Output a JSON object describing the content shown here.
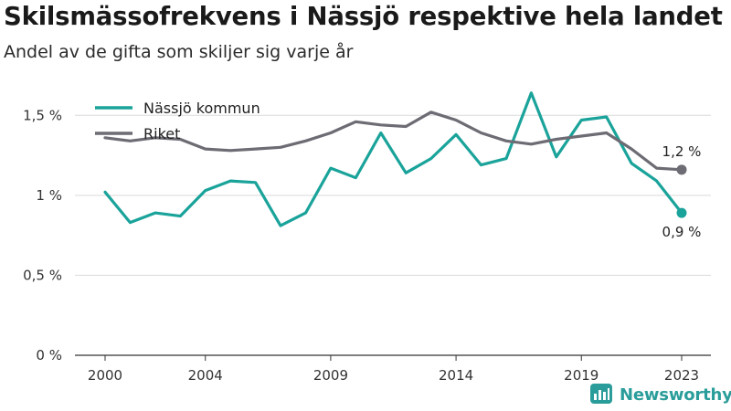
{
  "header": {
    "title": "Skilsmässofrekvens i Nässjö respektive hela landet",
    "subtitle": "Andel av de gifta som skiljer sig varje år"
  },
  "brand": {
    "name": "Newsworthy",
    "icon": "bar-chart-logo-icon",
    "color": "#2a9d9a"
  },
  "chart_data": {
    "type": "line",
    "x": [
      2000,
      2001,
      2002,
      2003,
      2004,
      2005,
      2006,
      2007,
      2008,
      2009,
      2010,
      2011,
      2012,
      2013,
      2014,
      2015,
      2016,
      2017,
      2018,
      2019,
      2020,
      2021,
      2022,
      2023
    ],
    "xticks": [
      2000,
      2004,
      2009,
      2014,
      2019,
      2023
    ],
    "yticks": [
      0,
      0.5,
      1,
      1.5
    ],
    "ytick_labels": [
      "0 %",
      "0,5 %",
      "1 %",
      "1,5 %"
    ],
    "ylim": [
      0,
      1.65
    ],
    "grid": true,
    "legend_position": "top-left",
    "series": [
      {
        "name": "Nässjö kommun",
        "color": "#1aa39a",
        "values": [
          1.02,
          0.83,
          0.89,
          0.87,
          1.03,
          1.09,
          1.08,
          0.81,
          0.89,
          1.17,
          1.11,
          1.39,
          1.14,
          1.23,
          1.38,
          1.19,
          1.23,
          1.64,
          1.24,
          1.47,
          1.49,
          1.2,
          1.09,
          0.89
        ],
        "end_label": "0,9 %"
      },
      {
        "name": "Riket",
        "color": "#6d6b73",
        "values": [
          1.36,
          1.34,
          1.36,
          1.35,
          1.29,
          1.28,
          1.29,
          1.3,
          1.34,
          1.39,
          1.46,
          1.44,
          1.43,
          1.52,
          1.47,
          1.39,
          1.34,
          1.32,
          1.35,
          1.37,
          1.39,
          1.29,
          1.17,
          1.16
        ],
        "end_label": "1,2 %"
      }
    ]
  }
}
